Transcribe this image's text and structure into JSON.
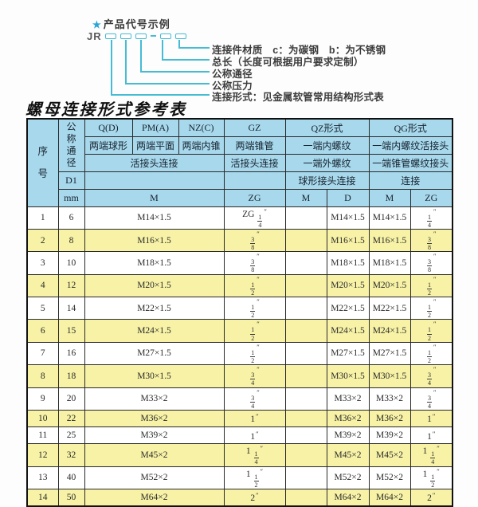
{
  "colors": {
    "accent": "#45bcd4",
    "star": "#2aa4d6",
    "header_blue": "#a8d8ec",
    "row_yellow": "#f7f2a6",
    "border": "#2a2a2a",
    "text": "#2b2b2b"
  },
  "diagram": {
    "star": "★",
    "example_title": "产品代号示例",
    "code_prefix": "JR",
    "labels": [
      "连接件材质　c：为碳钢　b：为不锈钢",
      "总长（长度可根据用户要求定制）",
      "公称通径",
      "公称压力",
      "连接形式：见金属软管常用结构形式表"
    ]
  },
  "table": {
    "title": "螺母连接形式参考表",
    "header": {
      "seq": "序号",
      "dn": "公称通径",
      "d1": "D1",
      "mm": "mm",
      "col_q": "Q(D)",
      "col_pm": "PM(A)",
      "col_nz": "NZ(C)",
      "col_gz": "GZ",
      "col_qz": "QZ形式",
      "col_qg": "QG形式",
      "q_desc": "两端球形",
      "pm_desc": "两端平面",
      "nz_desc": "两端内锥",
      "gz_desc": "两端锥管",
      "qz_desc1": "一端内螺纹",
      "qg_desc1": "一端内螺纹活接头",
      "qpmnz_conn": "活接头连接",
      "gz_conn": "活接头连接",
      "qz_desc2": "一端外螺纹",
      "qg_desc2": "一端锥管螺纹接头",
      "qz_conn": "球形接头连接",
      "qg_conn": "连接",
      "m_label": "M",
      "zg_label": "ZG",
      "qz_m": "M",
      "qz_d": "D",
      "qg_m": "M",
      "qg_zg": "ZG"
    },
    "rows": [
      {
        "no": "1",
        "dn": "6",
        "m": "M14×1.5",
        "gz": "ZG 1/4\"",
        "qz_m": "",
        "qz_d": "M14×1.5",
        "qg_m": "M14×1.5",
        "qg_zg": "1/4\""
      },
      {
        "no": "2",
        "dn": "8",
        "m": "M16×1.5",
        "gz": "3/8\"",
        "qz_m": "",
        "qz_d": "M16×1.5",
        "qg_m": "M16×1.5",
        "qg_zg": "3/8\""
      },
      {
        "no": "3",
        "dn": "10",
        "m": "M18×1.5",
        "gz": "3/8\"",
        "qz_m": "",
        "qz_d": "M18×1.5",
        "qg_m": "M18×1.5",
        "qg_zg": "3/8\""
      },
      {
        "no": "4",
        "dn": "12",
        "m": "M20×1.5",
        "gz": "1/2\"",
        "qz_m": "",
        "qz_d": "M20×1.5",
        "qg_m": "M20×1.5",
        "qg_zg": "1/2\""
      },
      {
        "no": "5",
        "dn": "14",
        "m": "M22×1.5",
        "gz": "1/2\"",
        "qz_m": "",
        "qz_d": "M22×1.5",
        "qg_m": "M22×1.5",
        "qg_zg": "1/2\""
      },
      {
        "no": "6",
        "dn": "15",
        "m": "M24×1.5",
        "gz": "1/2\"",
        "qz_m": "",
        "qz_d": "M24×1.5",
        "qg_m": "M24×1.5",
        "qg_zg": "1/2\""
      },
      {
        "no": "7",
        "dn": "16",
        "m": "M27×1.5",
        "gz": "1/2\"",
        "qz_m": "",
        "qz_d": "M27×1.5",
        "qg_m": "M27×1.5",
        "qg_zg": "1/2\""
      },
      {
        "no": "8",
        "dn": "18",
        "m": "M30×1.5",
        "gz": "3/4\"",
        "qz_m": "",
        "qz_d": "M30×1.5",
        "qg_m": "M30×1.5",
        "qg_zg": "3/4\""
      },
      {
        "no": "9",
        "dn": "20",
        "m": "M33×2",
        "gz": "3/4\"",
        "qz_m": "",
        "qz_d": "M33×2",
        "qg_m": "M33×2",
        "qg_zg": "3/4\""
      },
      {
        "no": "10",
        "dn": "22",
        "m": "M36×2",
        "gz": "1\"",
        "qz_m": "",
        "qz_d": "M36×2",
        "qg_m": "M36×2",
        "qg_zg": "1\""
      },
      {
        "no": "11",
        "dn": "25",
        "m": "M39×2",
        "gz": "1\"",
        "qz_m": "",
        "qz_d": "M39×2",
        "qg_m": "M39×2",
        "qg_zg": "1\""
      },
      {
        "no": "12",
        "dn": "32",
        "m": "M45×2",
        "gz": "1 1/4\"",
        "qz_m": "",
        "qz_d": "M45×2",
        "qg_m": "M45×2",
        "qg_zg": "1 1/4\""
      },
      {
        "no": "13",
        "dn": "40",
        "m": "M52×2",
        "gz": "1 1/2\"",
        "qz_m": "",
        "qz_d": "M52×2",
        "qg_m": "M52×2",
        "qg_zg": "1 1/2\""
      },
      {
        "no": "14",
        "dn": "50",
        "m": "M64×2",
        "gz": "2\"",
        "qz_m": "",
        "qz_d": "M64×2",
        "qg_m": "M64×2",
        "qg_zg": "2\""
      }
    ]
  }
}
